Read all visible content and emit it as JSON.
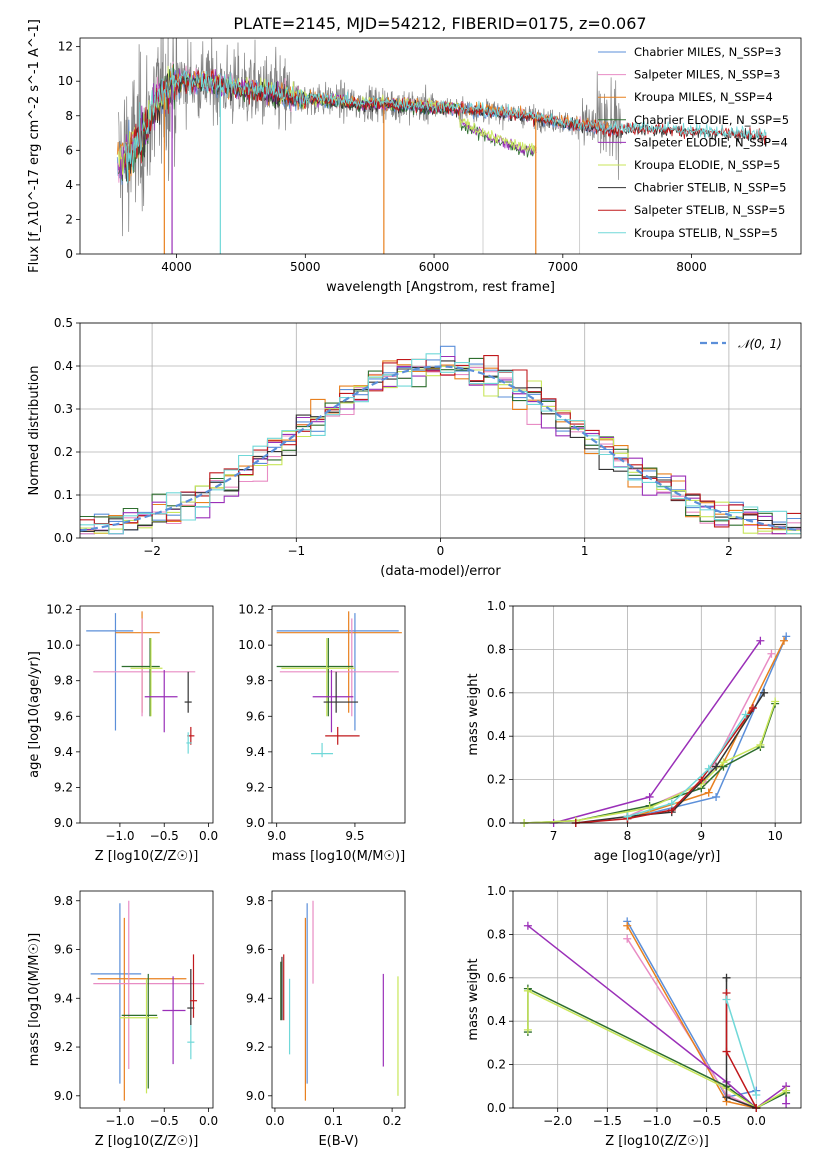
{
  "figure": {
    "title": "PLATE=2145, MJD=54212, FIBERID=0175, z=0.067"
  },
  "chart_data": [
    {
      "id": "spectrum",
      "type": "line",
      "xlabel": "wavelength [Angstrom, rest frame]",
      "ylabel": "Flux [f_λ10^-17 erg cm^-2 s^-1 A^-1]",
      "xlim": [
        3250,
        8850
      ],
      "ylim": [
        0,
        12.5
      ],
      "xticks": [
        4000,
        5000,
        6000,
        7000,
        8000
      ],
      "yticks": [
        0,
        2,
        4,
        6,
        8,
        10,
        12
      ],
      "grid": false,
      "legend_position": "top-right",
      "data_series": {
        "name": "data",
        "color": "#808080",
        "x_range": [
          3550,
          7450
        ]
      },
      "models": [
        {
          "label": "Chabrier MILES, N_SSP=3",
          "color": "#5b8fd9",
          "x_range": [
            3540,
            7420
          ]
        },
        {
          "label": "Salpeter MILES, N_SSP=3",
          "color": "#e88cc4",
          "x_range": [
            3540,
            7420
          ]
        },
        {
          "label": "Kroupa MILES, N_SSP=4",
          "color": "#e8801f",
          "x_range": [
            3540,
            7420
          ]
        },
        {
          "label": "Chabrier ELODIE, N_SSP=5",
          "color": "#2e6e2e",
          "x_range": [
            3550,
            6800
          ]
        },
        {
          "label": "Salpeter ELODIE, N_SSP=4",
          "color": "#9a2fb8",
          "x_range": [
            3550,
            6800
          ]
        },
        {
          "label": "Kroupa ELODIE, N_SSP=5",
          "color": "#c8e65a",
          "x_range": [
            3550,
            6800
          ]
        },
        {
          "label": "Chabrier STELIB, N_SSP=5",
          "color": "#333333",
          "x_range": [
            3600,
            8580
          ]
        },
        {
          "label": "Salpeter STELIB, N_SSP=5",
          "color": "#c0181c",
          "x_range": [
            3600,
            8580
          ]
        },
        {
          "label": "Kroupa STELIB, N_SSP=5",
          "color": "#70d8d8",
          "x_range": [
            3600,
            8580
          ]
        }
      ],
      "continuum": {
        "x": [
          3550,
          3650,
          3750,
          3850,
          3950,
          4050,
          4200,
          4400,
          4600,
          4800,
          5000,
          5200,
          5400,
          5600,
          5800,
          6000,
          6200,
          6400,
          6600,
          6800,
          7000,
          7200,
          7400,
          7600,
          7800,
          8000,
          8200,
          8400,
          8580
        ],
        "y": [
          5.2,
          6.0,
          7.1,
          8.8,
          9.7,
          10.1,
          10.0,
          9.7,
          9.5,
          9.2,
          9.0,
          8.9,
          8.7,
          8.7,
          8.6,
          8.5,
          8.4,
          8.3,
          8.1,
          7.9,
          7.6,
          7.4,
          7.2,
          7.3,
          7.2,
          7.1,
          7.0,
          6.9,
          6.8
        ]
      },
      "elodie_continuum": {
        "x": [
          6200,
          6400,
          6600,
          6800
        ],
        "y": [
          7.6,
          6.9,
          6.3,
          5.9
        ]
      }
    },
    {
      "id": "residuals",
      "type": "line",
      "xlabel": "(data-model)/error",
      "ylabel": "Normed distribution",
      "xlim": [
        -2.5,
        2.5
      ],
      "ylim": [
        0,
        0.5
      ],
      "xticks": [
        -2,
        -1,
        0,
        1,
        2
      ],
      "yticks": [
        0.0,
        0.1,
        0.2,
        0.3,
        0.4,
        0.5
      ],
      "grid": true,
      "legend_position": "top-right",
      "legend": [
        "𝒩(0, 1)"
      ],
      "gaussian": {
        "mean": 0,
        "sigma": 1,
        "color": "#5b8fd9"
      },
      "bin_width": 0.1
    },
    {
      "id": "age-vs-Z",
      "type": "scatter",
      "xlabel": "Z [log10(Z/Z☉)]",
      "ylabel": "age  [log10(age/yr)]",
      "xlim": [
        -1.45,
        0.05
      ],
      "ylim": [
        9.0,
        10.22
      ],
      "xticks": [
        -1.0,
        -0.5,
        0.0
      ],
      "yticks": [
        9.0,
        9.2,
        9.4,
        9.6,
        9.8,
        10.0,
        10.2
      ],
      "points": [
        {
          "x": -1.05,
          "y": 10.08,
          "xerr": [
            0.33,
            0.2
          ],
          "yerr": [
            0.56,
            0.1
          ],
          "color": "#5b8fd9"
        },
        {
          "x": -0.75,
          "y": 10.07,
          "xerr": [
            0.3,
            0.2
          ],
          "yerr": [
            0.45,
            0.12
          ],
          "color": "#e8801f"
        },
        {
          "x": -0.75,
          "y": 9.85,
          "xerr": [
            0.55,
            0.6
          ],
          "yerr": [
            0.25,
            0.3
          ],
          "color": "#e88cc4"
        },
        {
          "x": -0.66,
          "y": 9.88,
          "xerr": [
            0.32,
            0.11
          ],
          "yerr": [
            0.28,
            0.16
          ],
          "color": "#2e6e2e"
        },
        {
          "x": -0.65,
          "y": 9.87,
          "xerr": [
            0.23,
            0.13
          ],
          "yerr": [
            0.27,
            0.17
          ],
          "color": "#c8e65a"
        },
        {
          "x": -0.5,
          "y": 9.71,
          "xerr": [
            0.22,
            0.15
          ],
          "yerr": [
            0.2,
            0.15
          ],
          "color": "#9a2fb8"
        },
        {
          "x": -0.23,
          "y": 9.68,
          "xerr": [
            0.04,
            0.04
          ],
          "yerr": [
            0.06,
            0.17
          ],
          "color": "#333333"
        },
        {
          "x": -0.2,
          "y": 9.49,
          "xerr": [
            0.04,
            0.04
          ],
          "yerr": [
            0.05,
            0.05
          ],
          "color": "#c0181c"
        },
        {
          "x": -0.23,
          "y": 9.45,
          "xerr": [
            0.02,
            0.04
          ],
          "yerr": [
            0.06,
            0.06
          ],
          "color": "#70d8d8"
        }
      ]
    },
    {
      "id": "age-vs-mass",
      "type": "scatter",
      "xlabel": "mass [log10(M/M☉)]",
      "ylabel": "",
      "xlim": [
        8.97,
        9.82
      ],
      "ylim": [
        9.0,
        10.22
      ],
      "xticks": [
        9.0,
        9.5
      ],
      "yticks": [
        9.0,
        9.2,
        9.4,
        9.6,
        9.8,
        10.0,
        10.2
      ],
      "points": [
        {
          "x": 9.5,
          "y": 10.08,
          "xerr": [
            0.5,
            0.28
          ],
          "yerr": [
            0.56,
            0.1
          ],
          "color": "#5b8fd9"
        },
        {
          "x": 9.46,
          "y": 10.07,
          "xerr": [
            0.46,
            0.34
          ],
          "yerr": [
            0.45,
            0.12
          ],
          "color": "#e8801f"
        },
        {
          "x": 9.48,
          "y": 9.85,
          "xerr": [
            0.46,
            0.3
          ],
          "yerr": [
            0.25,
            0.3
          ],
          "color": "#e88cc4"
        },
        {
          "x": 9.33,
          "y": 9.88,
          "xerr": [
            0.33,
            0.16
          ],
          "yerr": [
            0.28,
            0.16
          ],
          "color": "#2e6e2e"
        },
        {
          "x": 9.32,
          "y": 9.87,
          "xerr": [
            0.29,
            0.18
          ],
          "yerr": [
            0.27,
            0.17
          ],
          "color": "#c8e65a"
        },
        {
          "x": 9.35,
          "y": 9.71,
          "xerr": [
            0.12,
            0.14
          ],
          "yerr": [
            0.2,
            0.15
          ],
          "color": "#9a2fb8"
        },
        {
          "x": 9.38,
          "y": 9.68,
          "xerr": [
            0.08,
            0.14
          ],
          "yerr": [
            0.06,
            0.17
          ],
          "color": "#333333"
        },
        {
          "x": 9.39,
          "y": 9.49,
          "xerr": [
            0.08,
            0.14
          ],
          "yerr": [
            0.05,
            0.05
          ],
          "color": "#c0181c"
        },
        {
          "x": 9.29,
          "y": 9.39,
          "xerr": [
            0.07,
            0.07
          ],
          "yerr": [
            0.02,
            0.06
          ],
          "color": "#70d8d8"
        }
      ]
    },
    {
      "id": "weight-vs-age",
      "type": "line",
      "xlabel": "age  [log10(age/yr)]",
      "ylabel": "mass weight",
      "xlim": [
        6.45,
        10.35
      ],
      "ylim": [
        0,
        1.0
      ],
      "xticks": [
        7,
        8,
        9,
        10
      ],
      "yticks": [
        0.0,
        0.2,
        0.4,
        0.6,
        0.8,
        1.0
      ],
      "grid": true,
      "series": [
        {
          "color": "#5b8fd9",
          "x": [
            8.0,
            9.2,
            10.15
          ],
          "y": [
            0.02,
            0.12,
            0.86
          ]
        },
        {
          "color": "#e88cc4",
          "x": [
            8.0,
            9.05,
            9.95
          ],
          "y": [
            0.03,
            0.19,
            0.78
          ]
        },
        {
          "color": "#e8801f",
          "x": [
            8.0,
            9.1,
            10.12
          ],
          "y": [
            0.02,
            0.14,
            0.84
          ]
        },
        {
          "color": "#9a2fb8",
          "x": [
            7.0,
            8.3,
            9.8
          ],
          "y": [
            0.0,
            0.12,
            0.84
          ]
        },
        {
          "color": "#2e6e2e",
          "x": [
            6.6,
            7.3,
            8.3,
            9.0,
            9.3,
            9.8,
            10.0
          ],
          "y": [
            0.0,
            0.01,
            0.08,
            0.16,
            0.26,
            0.35,
            0.55
          ]
        },
        {
          "color": "#c8e65a",
          "x": [
            6.6,
            7.3,
            8.3,
            9.0,
            9.3,
            9.8,
            10.0
          ],
          "y": [
            0.0,
            0.01,
            0.07,
            0.18,
            0.28,
            0.36,
            0.56
          ]
        },
        {
          "color": "#333333",
          "x": [
            7.3,
            8.0,
            8.6,
            9.2,
            9.85
          ],
          "y": [
            0.0,
            0.03,
            0.05,
            0.26,
            0.6
          ]
        },
        {
          "color": "#c0181c",
          "x": [
            7.3,
            8.0,
            8.6,
            9.0,
            9.7
          ],
          "y": [
            0.0,
            0.02,
            0.06,
            0.2,
            0.53
          ]
        },
        {
          "color": "#70d8d8",
          "x": [
            8.0,
            8.6,
            9.1,
            9.6
          ],
          "y": [
            0.03,
            0.09,
            0.25,
            0.5
          ]
        }
      ]
    },
    {
      "id": "mass-vs-Z",
      "type": "scatter",
      "xlabel": "Z [log10(Z/Z☉)]",
      "ylabel": "mass [log10(M/M☉)]",
      "xlim": [
        -1.45,
        0.05
      ],
      "ylim": [
        8.95,
        9.84
      ],
      "xticks": [
        -1.0,
        -0.5,
        0.0
      ],
      "yticks": [
        9.0,
        9.2,
        9.4,
        9.6,
        9.8
      ],
      "points": [
        {
          "x": -1.0,
          "y": 9.5,
          "xerr": [
            0.33,
            0.24
          ],
          "yerr": [
            0.45,
            0.29
          ],
          "color": "#5b8fd9"
        },
        {
          "x": -0.95,
          "y": 9.48,
          "xerr": [
            0.3,
            0.7
          ],
          "yerr": [
            0.5,
            0.25
          ],
          "color": "#e8801f"
        },
        {
          "x": -0.9,
          "y": 9.46,
          "xerr": [
            0.4,
            0.85
          ],
          "yerr": [
            0.35,
            0.34
          ],
          "color": "#e88cc4"
        },
        {
          "x": -0.68,
          "y": 9.33,
          "xerr": [
            0.3,
            0.1
          ],
          "yerr": [
            0.3,
            0.17
          ],
          "color": "#2e6e2e"
        },
        {
          "x": -0.7,
          "y": 9.32,
          "xerr": [
            0.3,
            0.13
          ],
          "yerr": [
            0.31,
            0.16
          ],
          "color": "#c8e65a"
        },
        {
          "x": -0.4,
          "y": 9.35,
          "xerr": [
            0.12,
            0.14
          ],
          "yerr": [
            0.22,
            0.14
          ],
          "color": "#9a2fb8"
        },
        {
          "x": -0.2,
          "y": 9.36,
          "xerr": [
            0.04,
            0.04
          ],
          "yerr": [
            0.07,
            0.16
          ],
          "color": "#333333"
        },
        {
          "x": -0.17,
          "y": 9.39,
          "xerr": [
            0.04,
            0.04
          ],
          "yerr": [
            0.07,
            0.19
          ],
          "color": "#c0181c"
        },
        {
          "x": -0.2,
          "y": 9.22,
          "xerr": [
            0.04,
            0.04
          ],
          "yerr": [
            0.07,
            0.07
          ],
          "color": "#70d8d8"
        }
      ]
    },
    {
      "id": "mass-vs-ebv",
      "type": "scatter",
      "xlabel": "E(B-V)",
      "ylabel": "",
      "xlim": [
        -0.005,
        0.222
      ],
      "ylim": [
        8.95,
        9.84
      ],
      "xticks": [
        0.0,
        0.1,
        0.2
      ],
      "yticks": [
        9.0,
        9.2,
        9.4,
        9.6,
        9.8
      ],
      "points": [
        {
          "x": 0.055,
          "y": 9.5,
          "yerr": [
            0.45,
            0.29
          ],
          "color": "#5b8fd9"
        },
        {
          "x": 0.052,
          "y": 9.48,
          "yerr": [
            0.5,
            0.25
          ],
          "color": "#e8801f"
        },
        {
          "x": 0.065,
          "y": 9.46,
          "yerr": [
            0.0,
            0.34
          ],
          "color": "#e88cc4"
        },
        {
          "x": 0.01,
          "y": 9.43,
          "yerr": [
            0.12,
            0.12
          ],
          "color": "#2e6e2e"
        },
        {
          "x": 0.21,
          "y": 9.25,
          "yerr": [
            0.25,
            0.24
          ],
          "color": "#c8e65a"
        },
        {
          "x": 0.185,
          "y": 9.31,
          "yerr": [
            0.19,
            0.19
          ],
          "color": "#9a2fb8"
        },
        {
          "x": 0.012,
          "y": 9.44,
          "yerr": [
            0.13,
            0.13
          ],
          "color": "#333333"
        },
        {
          "x": 0.015,
          "y": 9.45,
          "yerr": [
            0.14,
            0.13
          ],
          "color": "#c0181c"
        },
        {
          "x": 0.025,
          "y": 9.33,
          "yerr": [
            0.16,
            0.15
          ],
          "color": "#70d8d8"
        }
      ]
    },
    {
      "id": "weight-vs-Z",
      "type": "line",
      "xlabel": "Z [log10(Z/Z☉)]",
      "ylabel": "mass weight",
      "xlim": [
        -2.45,
        0.45
      ],
      "ylim": [
        0,
        1.0
      ],
      "xticks": [
        -2.0,
        -1.5,
        -1.0,
        -0.5,
        0.0
      ],
      "yticks": [
        0.0,
        0.2,
        0.4,
        0.6,
        0.8,
        1.0
      ],
      "grid": true,
      "series": [
        {
          "color": "#5b8fd9",
          "x": [
            -1.3,
            -0.3,
            0.0
          ],
          "y": [
            0.86,
            0.05,
            0.08
          ]
        },
        {
          "color": "#e88cc4",
          "x": [
            -1.3,
            -0.3,
            0.0
          ],
          "y": [
            0.78,
            0.06,
            0.0
          ]
        },
        {
          "color": "#e8801f",
          "x": [
            -1.3,
            -0.3,
            0.0
          ],
          "y": [
            0.84,
            0.03,
            0.0
          ]
        },
        {
          "color": "#9a2fb8",
          "x": [
            -2.3,
            -0.3,
            0.0,
            0.3,
            0.3
          ],
          "y": [
            0.84,
            0.12,
            0.0,
            0.1,
            0.02
          ]
        },
        {
          "color": "#2e6e2e",
          "x": [
            -2.3,
            -2.3,
            -0.3,
            0.0,
            0.3
          ],
          "y": [
            0.35,
            0.55,
            0.1,
            0.0,
            0.07
          ]
        },
        {
          "color": "#c8e65a",
          "x": [
            -2.3,
            -2.3,
            -0.3,
            0.0,
            0.3
          ],
          "y": [
            0.36,
            0.54,
            0.09,
            0.0,
            0.08
          ]
        },
        {
          "color": "#333333",
          "x": [
            -0.3,
            -0.3,
            0.0
          ],
          "y": [
            0.6,
            0.05,
            0.0
          ]
        },
        {
          "color": "#c0181c",
          "x": [
            -0.3,
            -0.3,
            0.0
          ],
          "y": [
            0.53,
            0.26,
            0.0
          ]
        },
        {
          "color": "#70d8d8",
          "x": [
            -0.3,
            0.0
          ],
          "y": [
            0.5,
            0.06
          ]
        }
      ]
    }
  ]
}
